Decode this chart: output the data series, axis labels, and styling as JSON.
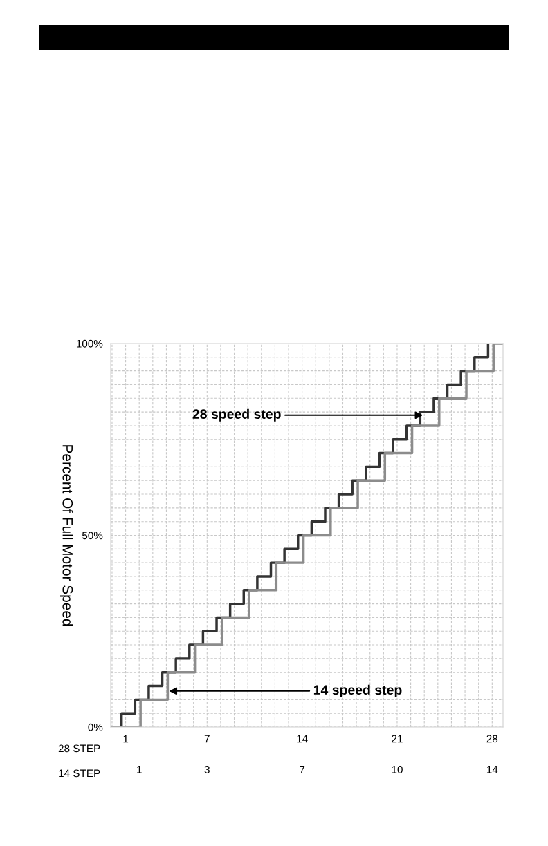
{
  "chart_data": {
    "type": "step",
    "ylabel": "Percent Of Full Motor Speed",
    "xlabel": "28 STEP",
    "x2label": "14 STEP",
    "series": [
      {
        "color": "#333333",
        "x": [
          -0.1,
          0.7,
          1.7,
          2.7,
          3.7,
          4.7,
          5.7,
          6.7,
          7.7,
          8.7,
          9.7,
          10.7,
          11.7,
          12.7,
          13.7,
          14.7,
          15.7,
          16.7,
          17.7,
          18.7,
          19.7,
          20.7,
          21.7,
          22.7,
          23.7,
          24.7,
          25.7,
          26.7,
          27.7
        ],
        "values": [
          0,
          3.57,
          7.14,
          10.71,
          14.29,
          17.86,
          21.43,
          25,
          28.57,
          32.14,
          35.71,
          39.29,
          42.86,
          46.43,
          50,
          53.57,
          57.14,
          60.71,
          64.29,
          67.86,
          71.43,
          75,
          78.57,
          82.14,
          85.71,
          89.29,
          92.86,
          96.43,
          100
        ]
      },
      {
        "color": "#8c8c8c",
        "x": [
          -0.1,
          2.1,
          4.1,
          6.1,
          8.1,
          10.1,
          12.1,
          14.1,
          16.1,
          18.1,
          20.1,
          22.1,
          24.1,
          26.1,
          28.1,
          28.8
        ],
        "values": [
          0,
          7.14,
          14.29,
          21.43,
          28.57,
          35.71,
          42.86,
          50,
          57.14,
          64.29,
          71.43,
          78.57,
          85.71,
          92.86,
          100,
          100
        ]
      }
    ],
    "xlim": [
      -0.1,
      28.8
    ],
    "xticks": [
      {
        "value": 0,
        "label": null
      },
      1,
      {
        "value": 2,
        "label": null
      },
      {
        "value": 3,
        "label": null
      },
      {
        "value": 4,
        "label": null
      },
      {
        "value": 5,
        "label": null
      },
      {
        "value": 6,
        "label": null
      },
      7,
      {
        "value": 8,
        "label": null
      },
      {
        "value": 9,
        "label": null
      },
      {
        "value": 10,
        "label": null
      },
      {
        "value": 11,
        "label": null
      },
      {
        "value": 12,
        "label": null
      },
      {
        "value": 13,
        "label": null
      },
      14,
      {
        "value": 15,
        "label": null
      },
      {
        "value": 16,
        "label": null
      },
      {
        "value": 17,
        "label": null
      },
      {
        "value": 18,
        "label": null
      },
      {
        "value": 19,
        "label": null
      },
      {
        "value": 20,
        "label": null
      },
      21,
      {
        "value": 22,
        "label": null
      },
      {
        "value": 23,
        "label": null
      },
      {
        "value": 24,
        "label": null
      },
      {
        "value": 25,
        "label": null
      },
      {
        "value": 26,
        "label": null
      },
      {
        "value": 27,
        "label": null
      },
      28
    ],
    "x2lim": [
      -0.05,
      14.4
    ],
    "x2ticks": [
      1,
      {
        "value": 3.5,
        "label": "3"
      },
      7,
      {
        "value": 10.5,
        "label": "10"
      },
      14
    ],
    "ylim": [
      0,
      100
    ],
    "yticks": [
      {
        "value": 0,
        "label": "0%"
      },
      {
        "value": 3.57,
        "label": null
      },
      {
        "value": 7.14,
        "label": null
      },
      {
        "value": 10.71,
        "label": null
      },
      {
        "value": 14.29,
        "label": null
      },
      {
        "value": 17.86,
        "label": null
      },
      {
        "value": 21.43,
        "label": null
      },
      {
        "value": 25,
        "label": null
      },
      {
        "value": 28.57,
        "label": null
      },
      {
        "value": 32.14,
        "label": null
      },
      {
        "value": 35.71,
        "label": null
      },
      {
        "value": 39.29,
        "label": null
      },
      {
        "value": 42.86,
        "label": null
      },
      {
        "value": 46.43,
        "label": null
      },
      {
        "value": 50,
        "label": "50%"
      },
      {
        "value": 53.57,
        "label": null
      },
      {
        "value": 57.14,
        "label": null
      },
      {
        "value": 60.71,
        "label": null
      },
      {
        "value": 64.29,
        "label": null
      },
      {
        "value": 67.86,
        "label": null
      },
      {
        "value": 71.43,
        "label": null
      },
      {
        "value": 75,
        "label": null
      },
      {
        "value": 78.57,
        "label": null
      },
      {
        "value": 82.14,
        "label": null
      },
      {
        "value": 85.71,
        "label": null
      },
      {
        "value": 89.29,
        "label": null
      },
      {
        "value": 92.86,
        "label": null
      },
      {
        "value": 96.43,
        "label": null
      },
      {
        "value": 100,
        "label": "100%"
      }
    ],
    "grid": true,
    "line_style": "solid",
    "annotations": [
      {
        "text": "28 speed step",
        "x": 22.9,
        "y": 81.3
      },
      {
        "text": "14 speed step",
        "x": 4.2,
        "y": 9.4
      }
    ]
  }
}
